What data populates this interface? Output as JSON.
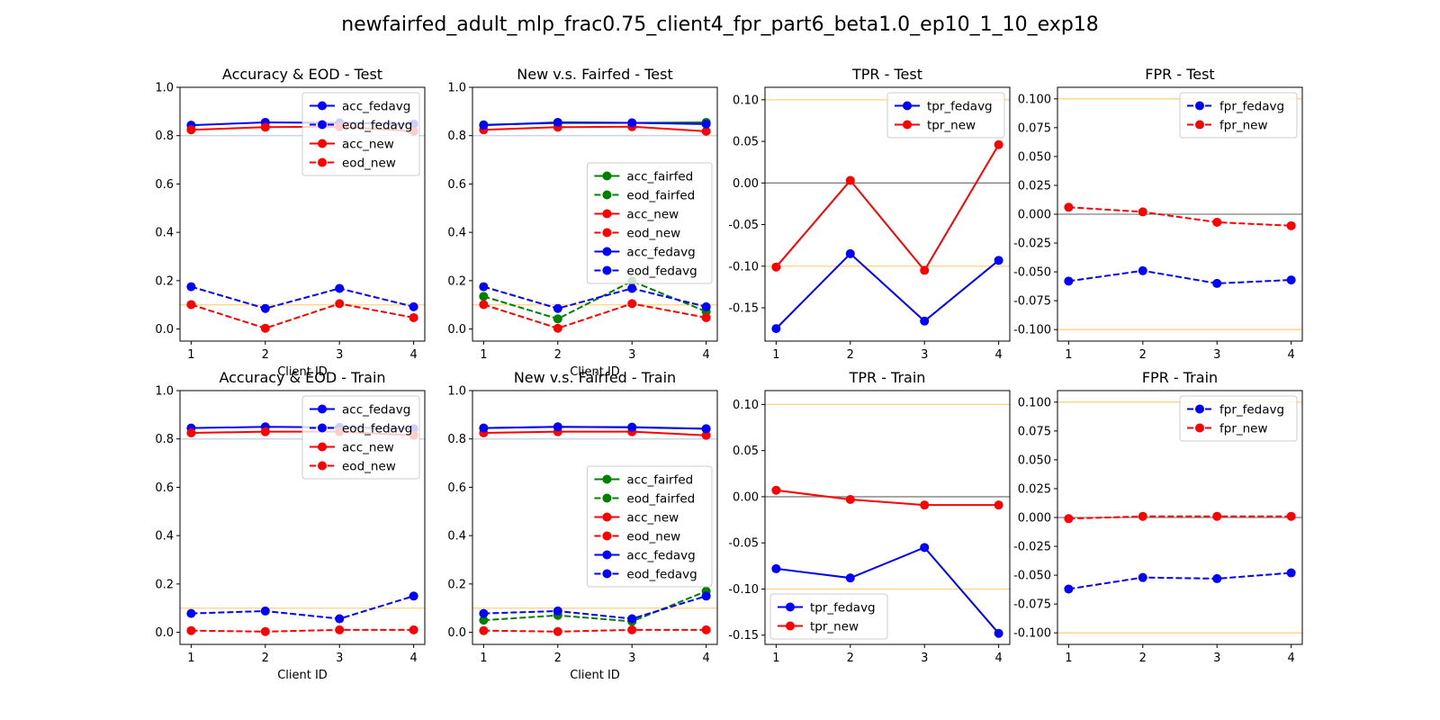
{
  "suptitle": "newfairfed_adult_mlp_frac0.75_client4_fpr_part6_beta1.0_ep10_1_10_exp18",
  "colors": {
    "fedavg": "#0000ff",
    "new": "#ff0000",
    "fairfed": "#008000",
    "threshold": "#ffd27f",
    "zero_line": "#808080",
    "ref_line": "#bfcfe8"
  },
  "chart_data": [
    {
      "type": "line",
      "title": "Accuracy & EOD - Test",
      "xlabel": "Client ID",
      "ylabel": "",
      "x": [
        1,
        2,
        3,
        4
      ],
      "ylim": [
        -0.05,
        1.0
      ],
      "yticks": [
        "0.0",
        "0.2",
        "0.4",
        "0.6",
        "0.8",
        "1.0"
      ],
      "hlines": [
        {
          "y": 0.1,
          "color": "threshold"
        },
        {
          "y": 0.8,
          "color": "ref_line"
        }
      ],
      "legend": "top-right",
      "series": [
        {
          "name": "acc_fedavg",
          "color": "fedavg",
          "dashed": false,
          "values": [
            0.843,
            0.855,
            0.853,
            0.848
          ]
        },
        {
          "name": "eod_fedavg",
          "color": "fedavg",
          "dashed": true,
          "values": [
            0.175,
            0.085,
            0.168,
            0.092
          ]
        },
        {
          "name": "acc_new",
          "color": "new",
          "dashed": false,
          "values": [
            0.824,
            0.835,
            0.837,
            0.818
          ]
        },
        {
          "name": "eod_new",
          "color": "new",
          "dashed": true,
          "values": [
            0.101,
            0.003,
            0.105,
            0.047
          ]
        }
      ]
    },
    {
      "type": "line",
      "title": "New v.s. Fairfed - Test",
      "xlabel": "Client ID",
      "ylabel": "",
      "x": [
        1,
        2,
        3,
        4
      ],
      "ylim": [
        -0.05,
        1.0
      ],
      "yticks": [
        "0.0",
        "0.2",
        "0.4",
        "0.6",
        "0.8",
        "1.0"
      ],
      "hlines": [
        {
          "y": 0.1,
          "color": "threshold"
        },
        {
          "y": 0.8,
          "color": "ref_line"
        }
      ],
      "legend": "center-right",
      "series": [
        {
          "name": "acc_fairfed",
          "color": "fairfed",
          "dashed": false,
          "values": [
            0.845,
            0.852,
            0.853,
            0.855
          ]
        },
        {
          "name": "eod_fairfed",
          "color": "fairfed",
          "dashed": true,
          "values": [
            0.135,
            0.042,
            0.198,
            0.072
          ]
        },
        {
          "name": "acc_new",
          "color": "new",
          "dashed": false,
          "values": [
            0.824,
            0.835,
            0.837,
            0.818
          ]
        },
        {
          "name": "eod_new",
          "color": "new",
          "dashed": true,
          "values": [
            0.101,
            0.003,
            0.105,
            0.047
          ]
        },
        {
          "name": "acc_fedavg",
          "color": "fedavg",
          "dashed": false,
          "values": [
            0.843,
            0.855,
            0.853,
            0.848
          ]
        },
        {
          "name": "eod_fedavg",
          "color": "fedavg",
          "dashed": true,
          "values": [
            0.175,
            0.085,
            0.168,
            0.092
          ]
        }
      ]
    },
    {
      "type": "line",
      "title": "TPR - Test",
      "xlabel": "",
      "ylabel": "",
      "x": [
        1,
        2,
        3,
        4
      ],
      "ylim": [
        -0.19,
        0.115
      ],
      "yticks": [
        "0.10",
        "0.05",
        "0.00",
        "-0.05",
        "-0.10",
        "-0.15"
      ],
      "ytick_values": [
        0.1,
        0.05,
        0.0,
        -0.05,
        -0.1,
        -0.15
      ],
      "hlines": [
        {
          "y": 0.1,
          "color": "threshold"
        },
        {
          "y": -0.1,
          "color": "threshold"
        },
        {
          "y": 0.0,
          "color": "zero_line"
        }
      ],
      "legend": "top-right",
      "series": [
        {
          "name": "tpr_fedavg",
          "color": "fedavg",
          "dashed": false,
          "values": [
            -0.175,
            -0.085,
            -0.166,
            -0.093
          ]
        },
        {
          "name": "tpr_new",
          "color": "new",
          "dashed": false,
          "values": [
            -0.101,
            0.003,
            -0.105,
            0.046
          ]
        }
      ]
    },
    {
      "type": "line",
      "title": "FPR - Test",
      "xlabel": "",
      "ylabel": "",
      "x": [
        1,
        2,
        3,
        4
      ],
      "ylim": [
        -0.11,
        0.11
      ],
      "yticks": [
        "0.100",
        "0.075",
        "0.050",
        "0.025",
        "0.000",
        "-0.025",
        "-0.050",
        "-0.075",
        "-0.100"
      ],
      "ytick_values": [
        0.1,
        0.075,
        0.05,
        0.025,
        0.0,
        -0.025,
        -0.05,
        -0.075,
        -0.1
      ],
      "hlines": [
        {
          "y": 0.1,
          "color": "threshold"
        },
        {
          "y": -0.1,
          "color": "threshold"
        },
        {
          "y": 0.0,
          "color": "zero_line"
        }
      ],
      "legend": "top-right",
      "series": [
        {
          "name": "fpr_fedavg",
          "color": "fedavg",
          "dashed": true,
          "values": [
            -0.058,
            -0.049,
            -0.06,
            -0.057
          ]
        },
        {
          "name": "fpr_new",
          "color": "new",
          "dashed": true,
          "values": [
            0.006,
            0.002,
            -0.007,
            -0.01
          ]
        }
      ]
    },
    {
      "type": "line",
      "title": "Accuracy & EOD - Train",
      "xlabel": "Client ID",
      "ylabel": "",
      "x": [
        1,
        2,
        3,
        4
      ],
      "ylim": [
        -0.05,
        1.0
      ],
      "yticks": [
        "0.0",
        "0.2",
        "0.4",
        "0.6",
        "0.8",
        "1.0"
      ],
      "hlines": [
        {
          "y": 0.1,
          "color": "threshold"
        },
        {
          "y": 0.8,
          "color": "ref_line"
        }
      ],
      "legend": "top-right",
      "series": [
        {
          "name": "acc_fedavg",
          "color": "fedavg",
          "dashed": false,
          "values": [
            0.845,
            0.85,
            0.848,
            0.842
          ]
        },
        {
          "name": "eod_fedavg",
          "color": "fedavg",
          "dashed": true,
          "values": [
            0.078,
            0.088,
            0.056,
            0.15
          ]
        },
        {
          "name": "acc_new",
          "color": "new",
          "dashed": false,
          "values": [
            0.825,
            0.83,
            0.83,
            0.815
          ]
        },
        {
          "name": "eod_new",
          "color": "new",
          "dashed": true,
          "values": [
            0.007,
            0.003,
            0.01,
            0.01
          ]
        }
      ]
    },
    {
      "type": "line",
      "title": "New v.s. Fairfed - Train",
      "xlabel": "Client ID",
      "ylabel": "",
      "x": [
        1,
        2,
        3,
        4
      ],
      "ylim": [
        -0.05,
        1.0
      ],
      "yticks": [
        "0.0",
        "0.2",
        "0.4",
        "0.6",
        "0.8",
        "1.0"
      ],
      "hlines": [
        {
          "y": 0.1,
          "color": "threshold"
        },
        {
          "y": 0.8,
          "color": "ref_line"
        }
      ],
      "legend": "center-right",
      "series": [
        {
          "name": "acc_fairfed",
          "color": "fairfed",
          "dashed": false,
          "values": [
            0.845,
            0.85,
            0.849,
            0.842
          ]
        },
        {
          "name": "eod_fairfed",
          "color": "fairfed",
          "dashed": true,
          "values": [
            0.05,
            0.07,
            0.045,
            0.17
          ]
        },
        {
          "name": "acc_new",
          "color": "new",
          "dashed": false,
          "values": [
            0.825,
            0.83,
            0.83,
            0.815
          ]
        },
        {
          "name": "eod_new",
          "color": "new",
          "dashed": true,
          "values": [
            0.007,
            0.003,
            0.01,
            0.01
          ]
        },
        {
          "name": "acc_fedavg",
          "color": "fedavg",
          "dashed": false,
          "values": [
            0.845,
            0.85,
            0.848,
            0.842
          ]
        },
        {
          "name": "eod_fedavg",
          "color": "fedavg",
          "dashed": true,
          "values": [
            0.078,
            0.088,
            0.056,
            0.15
          ]
        }
      ]
    },
    {
      "type": "line",
      "title": "TPR - Train",
      "xlabel": "",
      "ylabel": "",
      "x": [
        1,
        2,
        3,
        4
      ],
      "ylim": [
        -0.16,
        0.115
      ],
      "yticks": [
        "0.10",
        "0.05",
        "0.00",
        "-0.05",
        "-0.10",
        "-0.15"
      ],
      "ytick_values": [
        0.1,
        0.05,
        0.0,
        -0.05,
        -0.1,
        -0.15
      ],
      "hlines": [
        {
          "y": 0.1,
          "color": "threshold"
        },
        {
          "y": -0.1,
          "color": "threshold"
        },
        {
          "y": 0.0,
          "color": "zero_line"
        }
      ],
      "legend": "bottom-left",
      "series": [
        {
          "name": "tpr_fedavg",
          "color": "fedavg",
          "dashed": false,
          "values": [
            -0.078,
            -0.088,
            -0.055,
            -0.148
          ]
        },
        {
          "name": "tpr_new",
          "color": "new",
          "dashed": false,
          "values": [
            0.007,
            -0.003,
            -0.009,
            -0.009
          ]
        }
      ]
    },
    {
      "type": "line",
      "title": "FPR - Train",
      "xlabel": "",
      "ylabel": "",
      "x": [
        1,
        2,
        3,
        4
      ],
      "ylim": [
        -0.11,
        0.11
      ],
      "yticks": [
        "0.100",
        "0.075",
        "0.050",
        "0.025",
        "0.000",
        "-0.025",
        "-0.050",
        "-0.075",
        "-0.100"
      ],
      "ytick_values": [
        0.1,
        0.075,
        0.05,
        0.025,
        0.0,
        -0.025,
        -0.05,
        -0.075,
        -0.1
      ],
      "hlines": [
        {
          "y": 0.1,
          "color": "threshold"
        },
        {
          "y": -0.1,
          "color": "threshold"
        },
        {
          "y": 0.0,
          "color": "zero_line"
        }
      ],
      "legend": "top-right",
      "series": [
        {
          "name": "fpr_fedavg",
          "color": "fedavg",
          "dashed": true,
          "values": [
            -0.062,
            -0.052,
            -0.053,
            -0.048
          ]
        },
        {
          "name": "fpr_new",
          "color": "new",
          "dashed": true,
          "values": [
            -0.001,
            0.001,
            0.001,
            0.001
          ]
        }
      ]
    }
  ]
}
